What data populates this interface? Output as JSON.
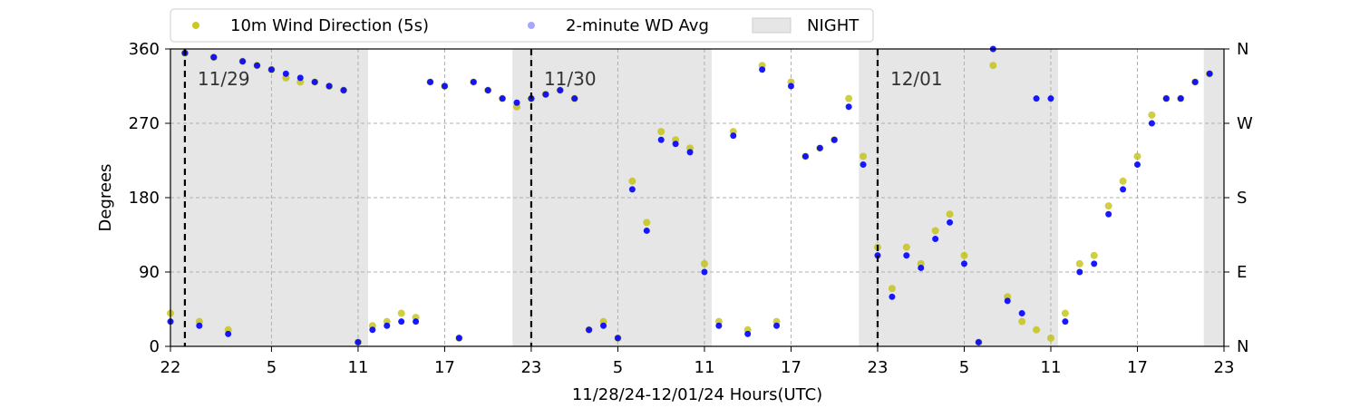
{
  "chart_data": {
    "type": "scatter",
    "title": "",
    "xlabel": "11/28/24-12/01/24  Hours(UTC)",
    "ylabel": "Degrees",
    "x_start": "2024-11-28 22:00 UTC",
    "xlim_hours": [
      0,
      73
    ],
    "ylim": [
      0,
      360
    ],
    "yticks": [
      0,
      90,
      180,
      270,
      360
    ],
    "x_tick_hours": [
      0,
      7,
      13,
      19,
      25,
      31,
      37,
      43,
      49,
      55,
      61,
      67,
      73
    ],
    "x_tick_labels": [
      "22",
      "5",
      "11",
      "17",
      "23",
      "5",
      "11",
      "17",
      "23",
      "5",
      "11",
      "17",
      "23"
    ],
    "right_ticks": [
      0,
      90,
      180,
      270,
      360
    ],
    "right_tick_labels": [
      "N",
      "E",
      "S",
      "W",
      "N"
    ],
    "grid": true,
    "legend_position": "top",
    "legend": [
      {
        "label": "10m Wind Direction (5s)",
        "kind": "point",
        "color": "#bfbf00"
      },
      {
        "label": "2-minute WD Avg",
        "kind": "point",
        "color": "#0000ff"
      },
      {
        "label": "NIGHT",
        "kind": "patch",
        "color": "#e6e6e6"
      }
    ],
    "night_periods_hours": [
      [
        0,
        13.7
      ],
      [
        23.7,
        37.5
      ],
      [
        47.7,
        61.5
      ],
      [
        71.6,
        73
      ]
    ],
    "day_boundaries": [
      {
        "hour": 1,
        "label": "11/29"
      },
      {
        "hour": 25,
        "label": "11/30"
      },
      {
        "hour": 49,
        "label": "12/01"
      }
    ],
    "series": [
      {
        "name": "10m Wind Direction (5s)",
        "color": "#bfbf00",
        "x": [
          0,
          1,
          2,
          3,
          4,
          5,
          6,
          7,
          8,
          9,
          10,
          11,
          12,
          13,
          14,
          15,
          16,
          17,
          18,
          19,
          20,
          21,
          22,
          23,
          24,
          25,
          26,
          27,
          28,
          29,
          30,
          31,
          32,
          33,
          34,
          35,
          36,
          37,
          38,
          39,
          40,
          41,
          42,
          43,
          44,
          45,
          46,
          47,
          48,
          49,
          50,
          51,
          52,
          53,
          54,
          55,
          56,
          57,
          58,
          59,
          60,
          61,
          62,
          63,
          64,
          65,
          66,
          67,
          68,
          69,
          70,
          71,
          72
        ],
        "y": [
          40,
          355,
          30,
          350,
          20,
          345,
          340,
          335,
          325,
          320,
          320,
          315,
          310,
          5,
          25,
          30,
          40,
          35,
          320,
          315,
          10,
          320,
          310,
          300,
          290,
          300,
          305,
          310,
          300,
          20,
          30,
          10,
          200,
          150,
          260,
          250,
          240,
          100,
          30,
          260,
          20,
          340,
          30,
          320,
          230,
          240,
          250,
          300,
          230,
          120,
          70,
          120,
          100,
          140,
          160,
          110,
          5,
          340,
          60,
          30,
          20,
          10,
          40,
          100,
          110,
          170,
          200,
          230,
          280,
          300,
          300,
          320,
          330
        ]
      },
      {
        "name": "2-minute WD Avg",
        "color": "#0000ff",
        "x": [
          0,
          1,
          2,
          3,
          4,
          5,
          6,
          7,
          8,
          9,
          10,
          11,
          12,
          13,
          14,
          15,
          16,
          17,
          18,
          19,
          20,
          21,
          22,
          23,
          24,
          25,
          26,
          27,
          28,
          29,
          30,
          31,
          32,
          33,
          34,
          35,
          36,
          37,
          38,
          39,
          40,
          41,
          42,
          43,
          44,
          45,
          46,
          47,
          48,
          49,
          50,
          51,
          52,
          53,
          54,
          55,
          56,
          57,
          58,
          59,
          60,
          61,
          62,
          63,
          64,
          65,
          66,
          67,
          68,
          69,
          70,
          71,
          72
        ],
        "y": [
          30,
          355,
          25,
          350,
          15,
          345,
          340,
          335,
          330,
          325,
          320,
          315,
          310,
          5,
          20,
          25,
          30,
          30,
          320,
          315,
          10,
          320,
          310,
          300,
          295,
          300,
          305,
          310,
          300,
          20,
          25,
          10,
          190,
          140,
          250,
          245,
          235,
          90,
          25,
          255,
          15,
          335,
          25,
          315,
          230,
          240,
          250,
          290,
          220,
          110,
          60,
          110,
          95,
          130,
          150,
          100,
          5,
          360,
          55,
          40,
          300,
          300,
          30,
          90,
          100,
          160,
          190,
          220,
          270,
          300,
          300,
          320,
          330
        ]
      }
    ]
  }
}
